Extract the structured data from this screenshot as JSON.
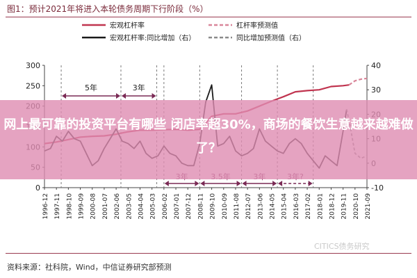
{
  "figure_title": "图1：预计2021年将进入本轮债务周期下行阶段（%）",
  "overlay_text": "网上最可靠的投资平台有哪些 闭店率超30%，商场的餐饮生意越来越难做了？",
  "source": "资料来源：社科院，Wind，中信证券研究部预测",
  "watermark": "CITICS债务研究",
  "colors": {
    "leverage": "#c0344f",
    "growth": "#1a1a1a",
    "leverage_forecast": "#d9869a",
    "growth_forecast": "#8a8a8a",
    "arrow": "#7a2a55",
    "overlay": "#de8cb2"
  },
  "chart_data": {
    "type": "line",
    "left_axis": {
      "ylim": [
        0,
        300
      ],
      "ticks": [
        "0",
        "50",
        "100",
        "150",
        "200",
        "250",
        "300"
      ]
    },
    "right_axis": {
      "ylim": [
        -10,
        40
      ],
      "ticks": [
        "-10",
        "0",
        "10",
        "20",
        "30",
        "40"
      ]
    },
    "x_labels": [
      "1996-12",
      "1997-11",
      "1998-10",
      "1999-09",
      "2000-08",
      "2001-07",
      "2002-06",
      "2003-05",
      "2004-04",
      "2005-03",
      "2006-02",
      "2007-01",
      "2007-12",
      "2008-11",
      "2009-10",
      "2010-09",
      "2011-08",
      "2012-07",
      "2013-06",
      "2014-05",
      "2015-04",
      "2016-03",
      "2017-02",
      "2018-01",
      "2018-12",
      "2019-11",
      "2020-10",
      "2021-09"
    ],
    "legend": [
      {
        "label": "宏观杠杆率",
        "style": "solid",
        "series": "leverage"
      },
      {
        "label": "杠杆率预测值",
        "style": "dashed",
        "series": "leverage_forecast"
      },
      {
        "label": "宏观杠杆率:同比增加（右）",
        "style": "solid",
        "series": "growth"
      },
      {
        "label": "同比增加预测值（右）",
        "style": "dashed",
        "series": "growth_forecast"
      }
    ],
    "series": [
      {
        "name": "宏观杠杆率",
        "axis": "left",
        "x": [
          0,
          1,
          2,
          3,
          4,
          5,
          6,
          7,
          8,
          9,
          10,
          11,
          12,
          13,
          14,
          15,
          16,
          17,
          18,
          19,
          20,
          21,
          22,
          23,
          24,
          25,
          25.5
        ],
        "values": [
          108,
          112,
          118,
          124,
          126,
          127,
          131,
          137,
          141,
          141,
          142,
          143,
          141,
          143,
          175,
          181,
          181,
          188,
          200,
          212,
          223,
          235,
          238,
          240,
          248,
          250,
          252
        ]
      },
      {
        "name": "杠杆率预测值",
        "axis": "left",
        "x": [
          25.5,
          26,
          26.5,
          27
        ],
        "values": [
          252,
          262,
          266,
          268
        ]
      },
      {
        "name": "宏观杠杆率:同比增加",
        "axis": "right",
        "x": [
          0,
          0.5,
          1,
          1.5,
          2,
          2.5,
          3,
          3.5,
          4,
          4.5,
          5,
          5.5,
          6,
          6.5,
          7,
          7.5,
          8,
          8.5,
          9,
          9.5,
          10,
          10.5,
          11,
          11.5,
          12,
          12.5,
          13,
          13.5,
          14,
          14.5,
          15,
          15.5,
          16,
          16.5,
          17,
          17.5,
          18,
          18.5,
          19,
          19.5,
          20,
          20.5,
          21,
          21.5,
          22,
          22.5,
          23,
          23.5,
          24,
          24.5,
          25,
          25.3
        ],
        "values": [
          5,
          6,
          11,
          9,
          13,
          10,
          9,
          4,
          -1,
          1,
          6,
          10,
          14,
          9,
          8,
          6,
          9,
          4,
          2,
          3,
          7,
          4,
          3,
          0,
          -1,
          -1,
          8,
          25,
          32,
          7,
          8,
          11,
          5,
          3,
          4,
          6,
          14,
          9,
          7,
          5,
          4,
          8,
          10,
          8,
          4,
          1,
          -2,
          3,
          1,
          -1,
          13,
          22
        ]
      },
      {
        "name": "同比增加预测值",
        "axis": "right",
        "x": [
          25.3,
          25.6,
          26,
          26.5,
          27
        ],
        "values": [
          22,
          15,
          4,
          2,
          3
        ]
      }
    ],
    "annotations": [
      {
        "text": "5年",
        "from": 1.4,
        "to": 6.4,
        "position": "upper",
        "style": "solid"
      },
      {
        "text": "3年",
        "from": 6.4,
        "to": 9.4,
        "position": "upper",
        "style": "solid"
      },
      {
        "text": "3年",
        "from": 10.0,
        "to": 13.0,
        "position": "lower",
        "style": "solid"
      },
      {
        "text": "3.5年",
        "from": 13.0,
        "to": 16.5,
        "position": "lower",
        "style": "solid"
      },
      {
        "text": "3年",
        "from": 16.5,
        "to": 19.5,
        "position": "lower",
        "style": "solid"
      },
      {
        "text": "3年?",
        "from": 19.5,
        "to": 22.5,
        "position": "lower",
        "style": "dashed"
      }
    ]
  }
}
